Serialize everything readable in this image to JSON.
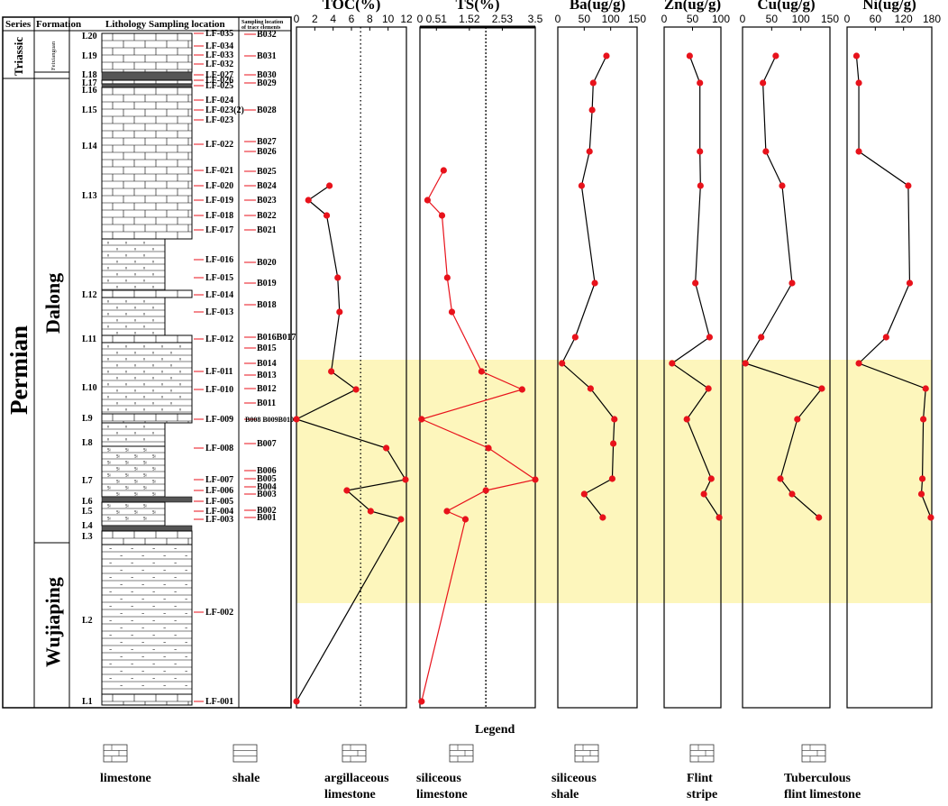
{
  "column_headers": {
    "series": "Series",
    "formation": "Formation",
    "lithology": "Lithology Sampling location",
    "trace_line1": "Sampling location",
    "trace_line2": "of trace elements"
  },
  "series_labels": [
    "Triassic",
    "Permian"
  ],
  "formation_labels": [
    "Feixianguan",
    "Dalong",
    "Wujiaping"
  ],
  "layer_labels": [
    "L20",
    "L19",
    "L18",
    "L17",
    "L16",
    "L15",
    "L14",
    "L13",
    "L12",
    "L11",
    "L10",
    "L9",
    "L8",
    "L7",
    "L6",
    "L5",
    "L4",
    "L3",
    "L2",
    "L1"
  ],
  "lf_labels": [
    "LF-035",
    "LF-034",
    "LF-033",
    "LF-032",
    "LF-027",
    "LF-026",
    "LF-025",
    "LF-024",
    "LF-023(2)",
    "LF-023",
    "LF-022",
    "LF-021",
    "LF-020",
    "LF-019",
    "LF-018",
    "LF-017",
    "LF-016",
    "LF-015",
    "LF-014",
    "LF-013",
    "LF-012",
    "LF-011",
    "LF-010",
    "LF-009",
    "LF-008",
    "LF-007",
    "LF-006",
    "LF-005",
    "LF-004",
    "LF-003",
    "LF-002",
    "LF-001"
  ],
  "b_labels": [
    "B032",
    "B031",
    "B030",
    "B029",
    "B028",
    "B027",
    "B026",
    "B025",
    "B024",
    "B023",
    "B022",
    "B021",
    "B020",
    "B019",
    "B018",
    "B016B017",
    "B015",
    "B014",
    "B013",
    "B012",
    "B011",
    "B008 B009B010",
    "B007",
    "B006",
    "B005",
    "B004",
    "B003",
    "B002",
    "B001"
  ],
  "chart_data": [
    {
      "type": "line",
      "title": "TOC(%)",
      "xlim": [
        0,
        12
      ],
      "ticks": [
        "0",
        "2",
        "4",
        "6",
        "8",
        "10",
        "12"
      ],
      "reference_line": 7,
      "colors": {
        "line": "#000000",
        "point": "#e8121b"
      },
      "points": [
        {
          "x": 3.6,
          "sample": "LF-020"
        },
        {
          "x": 1.3,
          "sample": "LF-019"
        },
        {
          "x": 3.3,
          "sample": "LF-018"
        },
        {
          "x": 4.5,
          "sample": "LF-015"
        },
        {
          "x": 4.7,
          "sample": "LF-013"
        },
        {
          "x": 3.8,
          "sample": "LF-011"
        },
        {
          "x": 6.5,
          "sample": "LF-010"
        },
        {
          "x": 0.0,
          "sample": "LF-009"
        },
        {
          "x": 9.8,
          "sample": "LF-008"
        },
        {
          "x": 11.9,
          "sample": "LF-007"
        },
        {
          "x": 5.5,
          "sample": "LF-006"
        },
        {
          "x": 8.1,
          "sample": "LF-004"
        },
        {
          "x": 11.4,
          "sample": "LF-003"
        },
        {
          "x": 0.0,
          "sample": "LF-001"
        }
      ]
    },
    {
      "type": "line",
      "title": "TS(%)",
      "xlim": [
        0,
        3.5
      ],
      "ticks": [
        "0",
        "0.5",
        "1",
        "1.5",
        "2",
        "2.5",
        "3",
        "3.5"
      ],
      "ticks_display": [
        "0",
        "0.51",
        "1.52",
        "2.53",
        "3.5"
      ],
      "reference_line": 2.0,
      "colors": {
        "line": "#e8121b",
        "point": "#e8121b"
      },
      "points": [
        {
          "x": 0.72,
          "sample": "LF-021"
        },
        {
          "x": 0.23,
          "sample": "LF-019"
        },
        {
          "x": 0.67,
          "sample": "LF-018"
        },
        {
          "x": 0.83,
          "sample": "LF-015"
        },
        {
          "x": 0.97,
          "sample": "LF-013"
        },
        {
          "x": 1.87,
          "sample": "LF-011"
        },
        {
          "x": 3.1,
          "sample": "LF-010"
        },
        {
          "x": 0.05,
          "sample": "LF-009"
        },
        {
          "x": 2.08,
          "sample": "LF-008"
        },
        {
          "x": 3.5,
          "sample": "LF-007"
        },
        {
          "x": 2.0,
          "sample": "LF-006"
        },
        {
          "x": 0.82,
          "sample": "LF-004"
        },
        {
          "x": 1.38,
          "sample": "LF-003"
        },
        {
          "x": 0.05,
          "sample": "LF-001"
        }
      ]
    },
    {
      "type": "line",
      "title": "Ba(ug/g)",
      "xlim": [
        0,
        150
      ],
      "ticks": [
        "0",
        "50",
        "100",
        "150"
      ],
      "colors": {
        "line": "#000000",
        "point": "#e8121b"
      },
      "points": [
        {
          "x": 92,
          "sample": "B031"
        },
        {
          "x": 67,
          "sample": "B029"
        },
        {
          "x": 65,
          "sample": "B028"
        },
        {
          "x": 60,
          "sample": "B026"
        },
        {
          "x": 45,
          "sample": "B024"
        },
        {
          "x": 70,
          "sample": "B019"
        },
        {
          "x": 33,
          "sample": "B016B017"
        },
        {
          "x": 8,
          "sample": "B014"
        },
        {
          "x": 62,
          "sample": "B012"
        },
        {
          "x": 107,
          "sample": "B008 B009B010"
        },
        {
          "x": 105,
          "sample": "B007"
        },
        {
          "x": 103,
          "sample": "B005"
        },
        {
          "x": 50,
          "sample": "B003"
        },
        {
          "x": 85,
          "sample": "B001"
        }
      ]
    },
    {
      "type": "line",
      "title": "Zn(ug/g)",
      "xlim": [
        0,
        100
      ],
      "ticks": [
        "0",
        "20",
        "40",
        "60",
        "80",
        "100"
      ],
      "ticks_display": [
        "0",
        "50",
        "100"
      ],
      "colors": {
        "line": "#000000",
        "point": "#e8121b"
      },
      "points": [
        {
          "x": 45,
          "sample": "B031"
        },
        {
          "x": 63,
          "sample": "B029"
        },
        {
          "x": 63,
          "sample": "B026"
        },
        {
          "x": 64,
          "sample": "B024"
        },
        {
          "x": 55,
          "sample": "B019"
        },
        {
          "x": 80,
          "sample": "B016B017"
        },
        {
          "x": 14,
          "sample": "B014"
        },
        {
          "x": 78,
          "sample": "B012"
        },
        {
          "x": 40,
          "sample": "B008 B009B010"
        },
        {
          "x": 83,
          "sample": "B005"
        },
        {
          "x": 70,
          "sample": "B003"
        },
        {
          "x": 97,
          "sample": "B001"
        }
      ]
    },
    {
      "type": "line",
      "title": "Cu(ug/g)",
      "xlim": [
        0,
        150
      ],
      "ticks": [
        "0",
        "50",
        "100",
        "150"
      ],
      "colors": {
        "line": "#000000",
        "point": "#e8121b"
      },
      "points": [
        {
          "x": 57,
          "sample": "B031"
        },
        {
          "x": 35,
          "sample": "B029"
        },
        {
          "x": 40,
          "sample": "B026"
        },
        {
          "x": 68,
          "sample": "B024"
        },
        {
          "x": 85,
          "sample": "B019"
        },
        {
          "x": 32,
          "sample": "B016B017"
        },
        {
          "x": 5,
          "sample": "B014"
        },
        {
          "x": 136,
          "sample": "B012"
        },
        {
          "x": 94,
          "sample": "B008 B009B010"
        },
        {
          "x": 65,
          "sample": "B005"
        },
        {
          "x": 85,
          "sample": "B003"
        },
        {
          "x": 131,
          "sample": "B001"
        }
      ]
    },
    {
      "type": "line",
      "title": "Ni(ug/g)",
      "xlim": [
        0,
        180
      ],
      "ticks": [
        "0",
        "30",
        "60",
        "90",
        "120",
        "150",
        "180"
      ],
      "ticks_display": [
        "0",
        "60",
        "120",
        "180"
      ],
      "colors": {
        "line": "#000000",
        "point": "#e8121b"
      },
      "points": [
        {
          "x": 20,
          "sample": "B031"
        },
        {
          "x": 25,
          "sample": "B029"
        },
        {
          "x": 25,
          "sample": "B026"
        },
        {
          "x": 130,
          "sample": "B024"
        },
        {
          "x": 133,
          "sample": "B019"
        },
        {
          "x": 83,
          "sample": "B016B017"
        },
        {
          "x": 25,
          "sample": "B014"
        },
        {
          "x": 167,
          "sample": "B012"
        },
        {
          "x": 162,
          "sample": "B008 B009B010"
        },
        {
          "x": 160,
          "sample": "B005"
        },
        {
          "x": 158,
          "sample": "B003"
        },
        {
          "x": 178,
          "sample": "B001"
        }
      ]
    }
  ],
  "highlight_band": {
    "color": "#fdf6bc",
    "from_sample": "B014",
    "to_sample": "L2 middle"
  },
  "legend": {
    "title": "Legend",
    "items": [
      {
        "line1": "limestone",
        "line2": ""
      },
      {
        "line1": "shale",
        "line2": ""
      },
      {
        "line1": "argillaceous",
        "line2": "limestone"
      },
      {
        "line1": "siliceous",
        "line2": "limestone"
      },
      {
        "line1": "siliceous",
        "line2": "shale"
      },
      {
        "line1": "Flint",
        "line2": "stripe"
      },
      {
        "line1": "Tuberculous",
        "line2": "flint limestone"
      }
    ]
  }
}
